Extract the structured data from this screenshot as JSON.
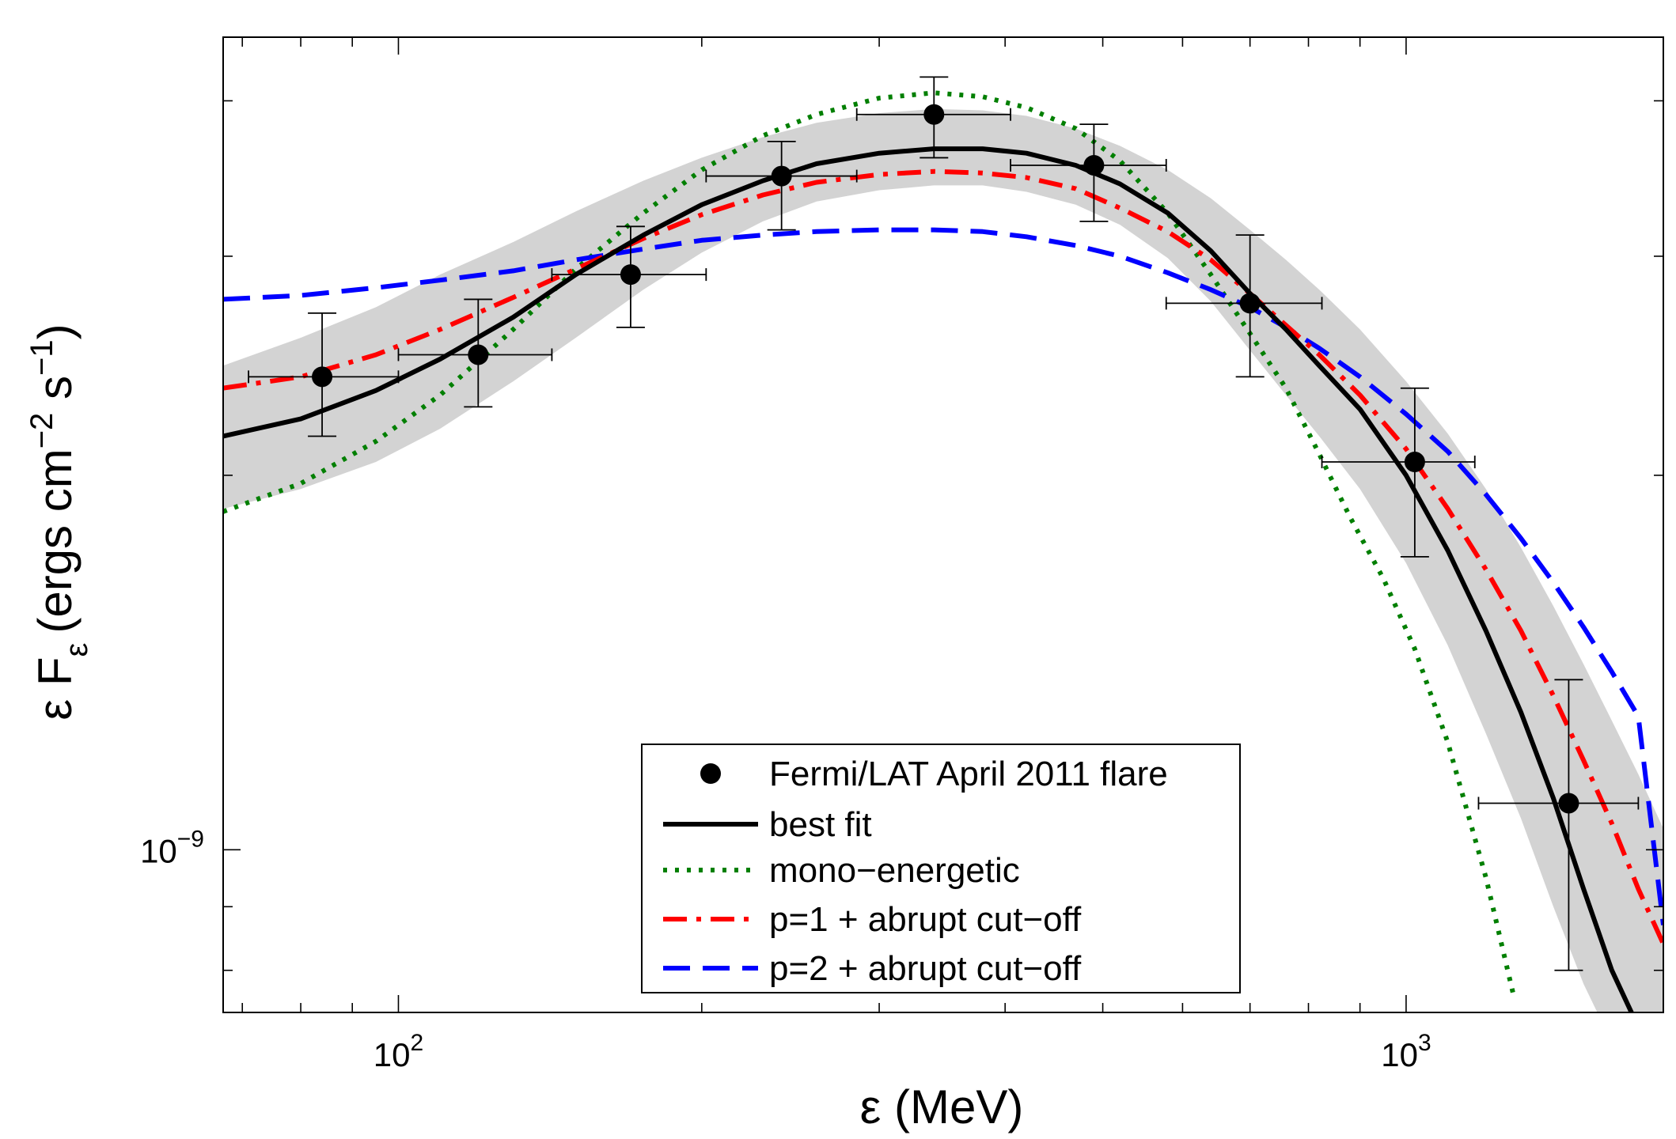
{
  "chart_data": {
    "type": "scatter",
    "xlabel": "ε (MeV)",
    "ylabel_main": "ε F",
    "ylabel_sub": "ε",
    "ylabel_units": "(ergs cm",
    "ylabel_exp1": "−2",
    "ylabel_mid": " s",
    "ylabel_exp2": "−1",
    "ylabel_close": ")",
    "x_scale": "log",
    "y_scale": "log",
    "xlim": [
      67,
      1800
    ],
    "ylim": [
      7.4e-10,
      4.5e-09
    ],
    "x_ticks": [
      {
        "value": 100,
        "base": "10",
        "exp": "2"
      },
      {
        "value": 1000,
        "base": "10",
        "exp": "3"
      }
    ],
    "y_ticks": [
      {
        "value": 1e-09,
        "base": "10",
        "exp": "−9"
      }
    ],
    "grid": false,
    "legend_position": "bottom-center",
    "series": [
      {
        "name": "Fermi/LAT April 2011 flare",
        "kind": "points",
        "color": "#000000",
        "points": [
          {
            "x": 84,
            "y": 2.4e-09,
            "xlo": 71,
            "xhi": 100,
            "ylo": 2.15e-09,
            "yhi": 2.7e-09
          },
          {
            "x": 120,
            "y": 2.5e-09,
            "xlo": 100,
            "xhi": 142,
            "ylo": 2.27e-09,
            "yhi": 2.77e-09
          },
          {
            "x": 170,
            "y": 2.9e-09,
            "xlo": 142,
            "xhi": 202,
            "ylo": 2.63e-09,
            "yhi": 3.17e-09
          },
          {
            "x": 240,
            "y": 3.48e-09,
            "xlo": 202,
            "xhi": 285,
            "ylo": 3.15e-09,
            "yhi": 3.71e-09
          },
          {
            "x": 340,
            "y": 3.9e-09,
            "xlo": 285,
            "xhi": 405,
            "ylo": 3.6e-09,
            "yhi": 4.18e-09
          },
          {
            "x": 490,
            "y": 3.55e-09,
            "xlo": 405,
            "xhi": 578,
            "ylo": 3.2e-09,
            "yhi": 3.83e-09
          },
          {
            "x": 700,
            "y": 2.75e-09,
            "xlo": 578,
            "xhi": 825,
            "ylo": 2.4e-09,
            "yhi": 3.12e-09
          },
          {
            "x": 1020,
            "y": 2.05e-09,
            "xlo": 825,
            "xhi": 1170,
            "ylo": 1.72e-09,
            "yhi": 2.35e-09
          },
          {
            "x": 1450,
            "y": 1.09e-09,
            "xlo": 1180,
            "xhi": 1700,
            "ylo": 8e-10,
            "yhi": 1.37e-09
          }
        ]
      },
      {
        "name": "best fit",
        "kind": "line",
        "color": "#000000",
        "dash": "solid",
        "x": [
          67,
          80,
          95,
          110,
          130,
          150,
          175,
          200,
          230,
          260,
          300,
          340,
          380,
          420,
          470,
          520,
          580,
          640,
          700,
          760,
          820,
          900,
          1000,
          1100,
          1200,
          1300,
          1400,
          1500,
          1600,
          1700
        ],
        "y": [
          2.15e-09,
          2.22e-09,
          2.34e-09,
          2.48e-09,
          2.68e-09,
          2.9e-09,
          3.12e-09,
          3.3e-09,
          3.45e-09,
          3.56e-09,
          3.63e-09,
          3.66e-09,
          3.66e-09,
          3.63e-09,
          3.55e-09,
          3.43e-09,
          3.25e-09,
          3.03e-09,
          2.8e-09,
          2.62e-09,
          2.45e-09,
          2.26e-09,
          2e-09,
          1.74e-09,
          1.5e-09,
          1.29e-09,
          1.1e-09,
          9.3e-10,
          8e-10,
          7.2e-10
        ]
      },
      {
        "name": "mono−energetic",
        "kind": "line",
        "color": "#007f00",
        "dash": "dotted",
        "x": [
          67,
          80,
          95,
          110,
          130,
          150,
          175,
          200,
          230,
          260,
          300,
          340,
          380,
          420,
          470,
          520,
          580,
          640,
          700,
          760,
          820,
          880,
          950,
          1020,
          1100,
          1200,
          1280
        ],
        "y": [
          1.87e-09,
          1.97e-09,
          2.13e-09,
          2.32e-09,
          2.62e-09,
          2.93e-09,
          3.25e-09,
          3.52e-09,
          3.75e-09,
          3.9e-09,
          4.02e-09,
          4.06e-09,
          4.03e-09,
          3.95e-09,
          3.8e-09,
          3.58e-09,
          3.25e-09,
          2.9e-09,
          2.6e-09,
          2.35e-09,
          2.08e-09,
          1.85e-09,
          1.65e-09,
          1.45e-09,
          1.22e-09,
          9.5e-10,
          7.6e-10
        ]
      },
      {
        "name": "p=1 + abrupt cut−off",
        "kind": "line",
        "color": "#ff0000",
        "dash": "dashdot",
        "x": [
          67,
          80,
          95,
          110,
          130,
          150,
          175,
          200,
          230,
          260,
          300,
          340,
          380,
          420,
          470,
          520,
          580,
          640,
          700,
          760,
          820,
          900,
          1000,
          1100,
          1200,
          1300,
          1400,
          1500,
          1600,
          1700,
          1800
        ],
        "y": [
          2.35e-09,
          2.4e-09,
          2.5e-09,
          2.62e-09,
          2.78e-09,
          2.93e-09,
          3.1e-09,
          3.24e-09,
          3.36e-09,
          3.44e-09,
          3.49e-09,
          3.51e-09,
          3.5e-09,
          3.47e-09,
          3.4e-09,
          3.28e-09,
          3.14e-09,
          2.98e-09,
          2.8e-09,
          2.64e-09,
          2.5e-09,
          2.32e-09,
          2.1e-09,
          1.88e-09,
          1.68e-09,
          1.5e-09,
          1.33e-09,
          1.18e-09,
          1.05e-09,
          9.3e-10,
          8.4e-10
        ]
      },
      {
        "name": "p=2 + abrupt cut−off",
        "kind": "line",
        "color": "#0000ff",
        "dash": "dashed",
        "x": [
          67,
          80,
          95,
          110,
          130,
          150,
          175,
          200,
          230,
          260,
          300,
          340,
          380,
          420,
          470,
          520,
          580,
          640,
          700,
          760,
          820,
          900,
          1000,
          1100,
          1200,
          1300,
          1400,
          1500,
          1600,
          1700,
          1800
        ],
        "y": [
          2.77e-09,
          2.79e-09,
          2.83e-09,
          2.87e-09,
          2.92e-09,
          2.98e-09,
          3.04e-09,
          3.09e-09,
          3.12e-09,
          3.14e-09,
          3.15e-09,
          3.15e-09,
          3.14e-09,
          3.11e-09,
          3.06e-09,
          3e-09,
          2.91e-09,
          2.82e-09,
          2.73e-09,
          2.63e-09,
          2.53e-09,
          2.4e-09,
          2.24e-09,
          2.09e-09,
          1.93e-09,
          1.78e-09,
          1.64e-09,
          1.51e-09,
          1.39e-09,
          1.28e-09,
          8.7e-10
        ]
      }
    ],
    "uncertainty_band": {
      "color": "#d3d3d3",
      "x": [
        67,
        80,
        95,
        110,
        130,
        150,
        175,
        200,
        230,
        260,
        300,
        340,
        380,
        420,
        470,
        520,
        580,
        640,
        700,
        760,
        820,
        900,
        1000,
        1100,
        1200,
        1300,
        1400,
        1500,
        1600,
        1700,
        1800
      ],
      "upper": [
        2.45e-09,
        2.58e-09,
        2.73e-09,
        2.9e-09,
        3.08e-09,
        3.26e-09,
        3.45e-09,
        3.6e-09,
        3.74e-09,
        3.84e-09,
        3.91e-09,
        3.94e-09,
        3.93e-09,
        3.89e-09,
        3.8e-09,
        3.68e-09,
        3.52e-09,
        3.34e-09,
        3.15e-09,
        2.98e-09,
        2.82e-09,
        2.62e-09,
        2.38e-09,
        2.16e-09,
        1.95e-09,
        1.75e-09,
        1.57e-09,
        1.41e-09,
        1.27e-09,
        1.15e-09,
        1.04e-09
      ],
      "lower": [
        1.88e-09,
        1.95e-09,
        2.05e-09,
        2.18e-09,
        2.38e-09,
        2.58e-09,
        2.82e-09,
        3.02e-09,
        3.2e-09,
        3.32e-09,
        3.39e-09,
        3.42e-09,
        3.42e-09,
        3.38e-09,
        3.3e-09,
        3.18e-09,
        2.99e-09,
        2.76e-09,
        2.52e-09,
        2.32e-09,
        2.15e-09,
        1.95e-09,
        1.7e-09,
        1.46e-09,
        1.24e-09,
        1.06e-09,
        9e-10,
        7.8e-10,
        7e-10,
        7e-10,
        7e-10
      ]
    }
  }
}
